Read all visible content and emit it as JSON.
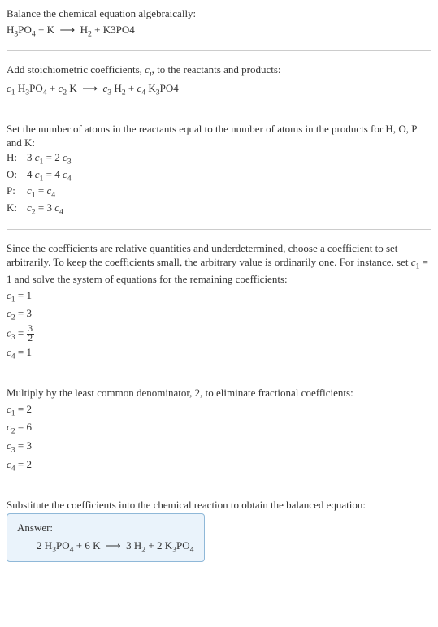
{
  "colors": {
    "text": "#333333",
    "divider": "#cccccc",
    "answer_bg": "#eaf3fb",
    "answer_border": "#8fb8d8",
    "background": "#ffffff"
  },
  "typography": {
    "body_fontsize_pt": 10,
    "font_family": "Georgia, Times New Roman, serif"
  },
  "step1": {
    "intro": "Balance the chemical equation algebraically:",
    "equation": "H₃PO₄ + K ⟶ H₂ + K3PO4"
  },
  "step2": {
    "intro_a": "Add stoichiometric coefficients, ",
    "intro_var": "c",
    "intro_sub": "i",
    "intro_b": ", to the reactants and products:",
    "equation": "c₁ H₃PO₄ + c₂ K ⟶ c₃ H₂ + c₄ K₃PO4"
  },
  "step3": {
    "intro": "Set the number of atoms in the reactants equal to the number of atoms in the products for H, O, P and K:",
    "rows": [
      {
        "label": "H:",
        "eq": "3 c₁ = 2 c₃"
      },
      {
        "label": "O:",
        "eq": "4 c₁ = 4 c₄"
      },
      {
        "label": "P:",
        "eq": "c₁ = c₄"
      },
      {
        "label": "K:",
        "eq": "c₂ = 3 c₄"
      }
    ]
  },
  "step4": {
    "intro": "Since the coefficients are relative quantities and underdetermined, choose a coefficient to set arbitrarily. To keep the coefficients small, the arbitrary value is ordinarily one. For instance, set c₁ = 1 and solve the system of equations for the remaining coefficients:",
    "lines": {
      "c1": "c₁ = 1",
      "c2": "c₂ = 3",
      "c3_lhs": "c₃ = ",
      "c3_num": "3",
      "c3_den": "2",
      "c4": "c₄ = 1"
    }
  },
  "step5": {
    "intro": "Multiply by the least common denominator, 2, to eliminate fractional coefficients:",
    "lines": [
      "c₁ = 2",
      "c₂ = 6",
      "c₃ = 3",
      "c₄ = 2"
    ]
  },
  "step6": {
    "intro": "Substitute the coefficients into the chemical reaction to obtain the balanced equation:"
  },
  "answer": {
    "title": "Answer:",
    "equation": "2 H₃PO₄ + 6 K ⟶ 3 H₂ + 2 K₃PO₄"
  }
}
